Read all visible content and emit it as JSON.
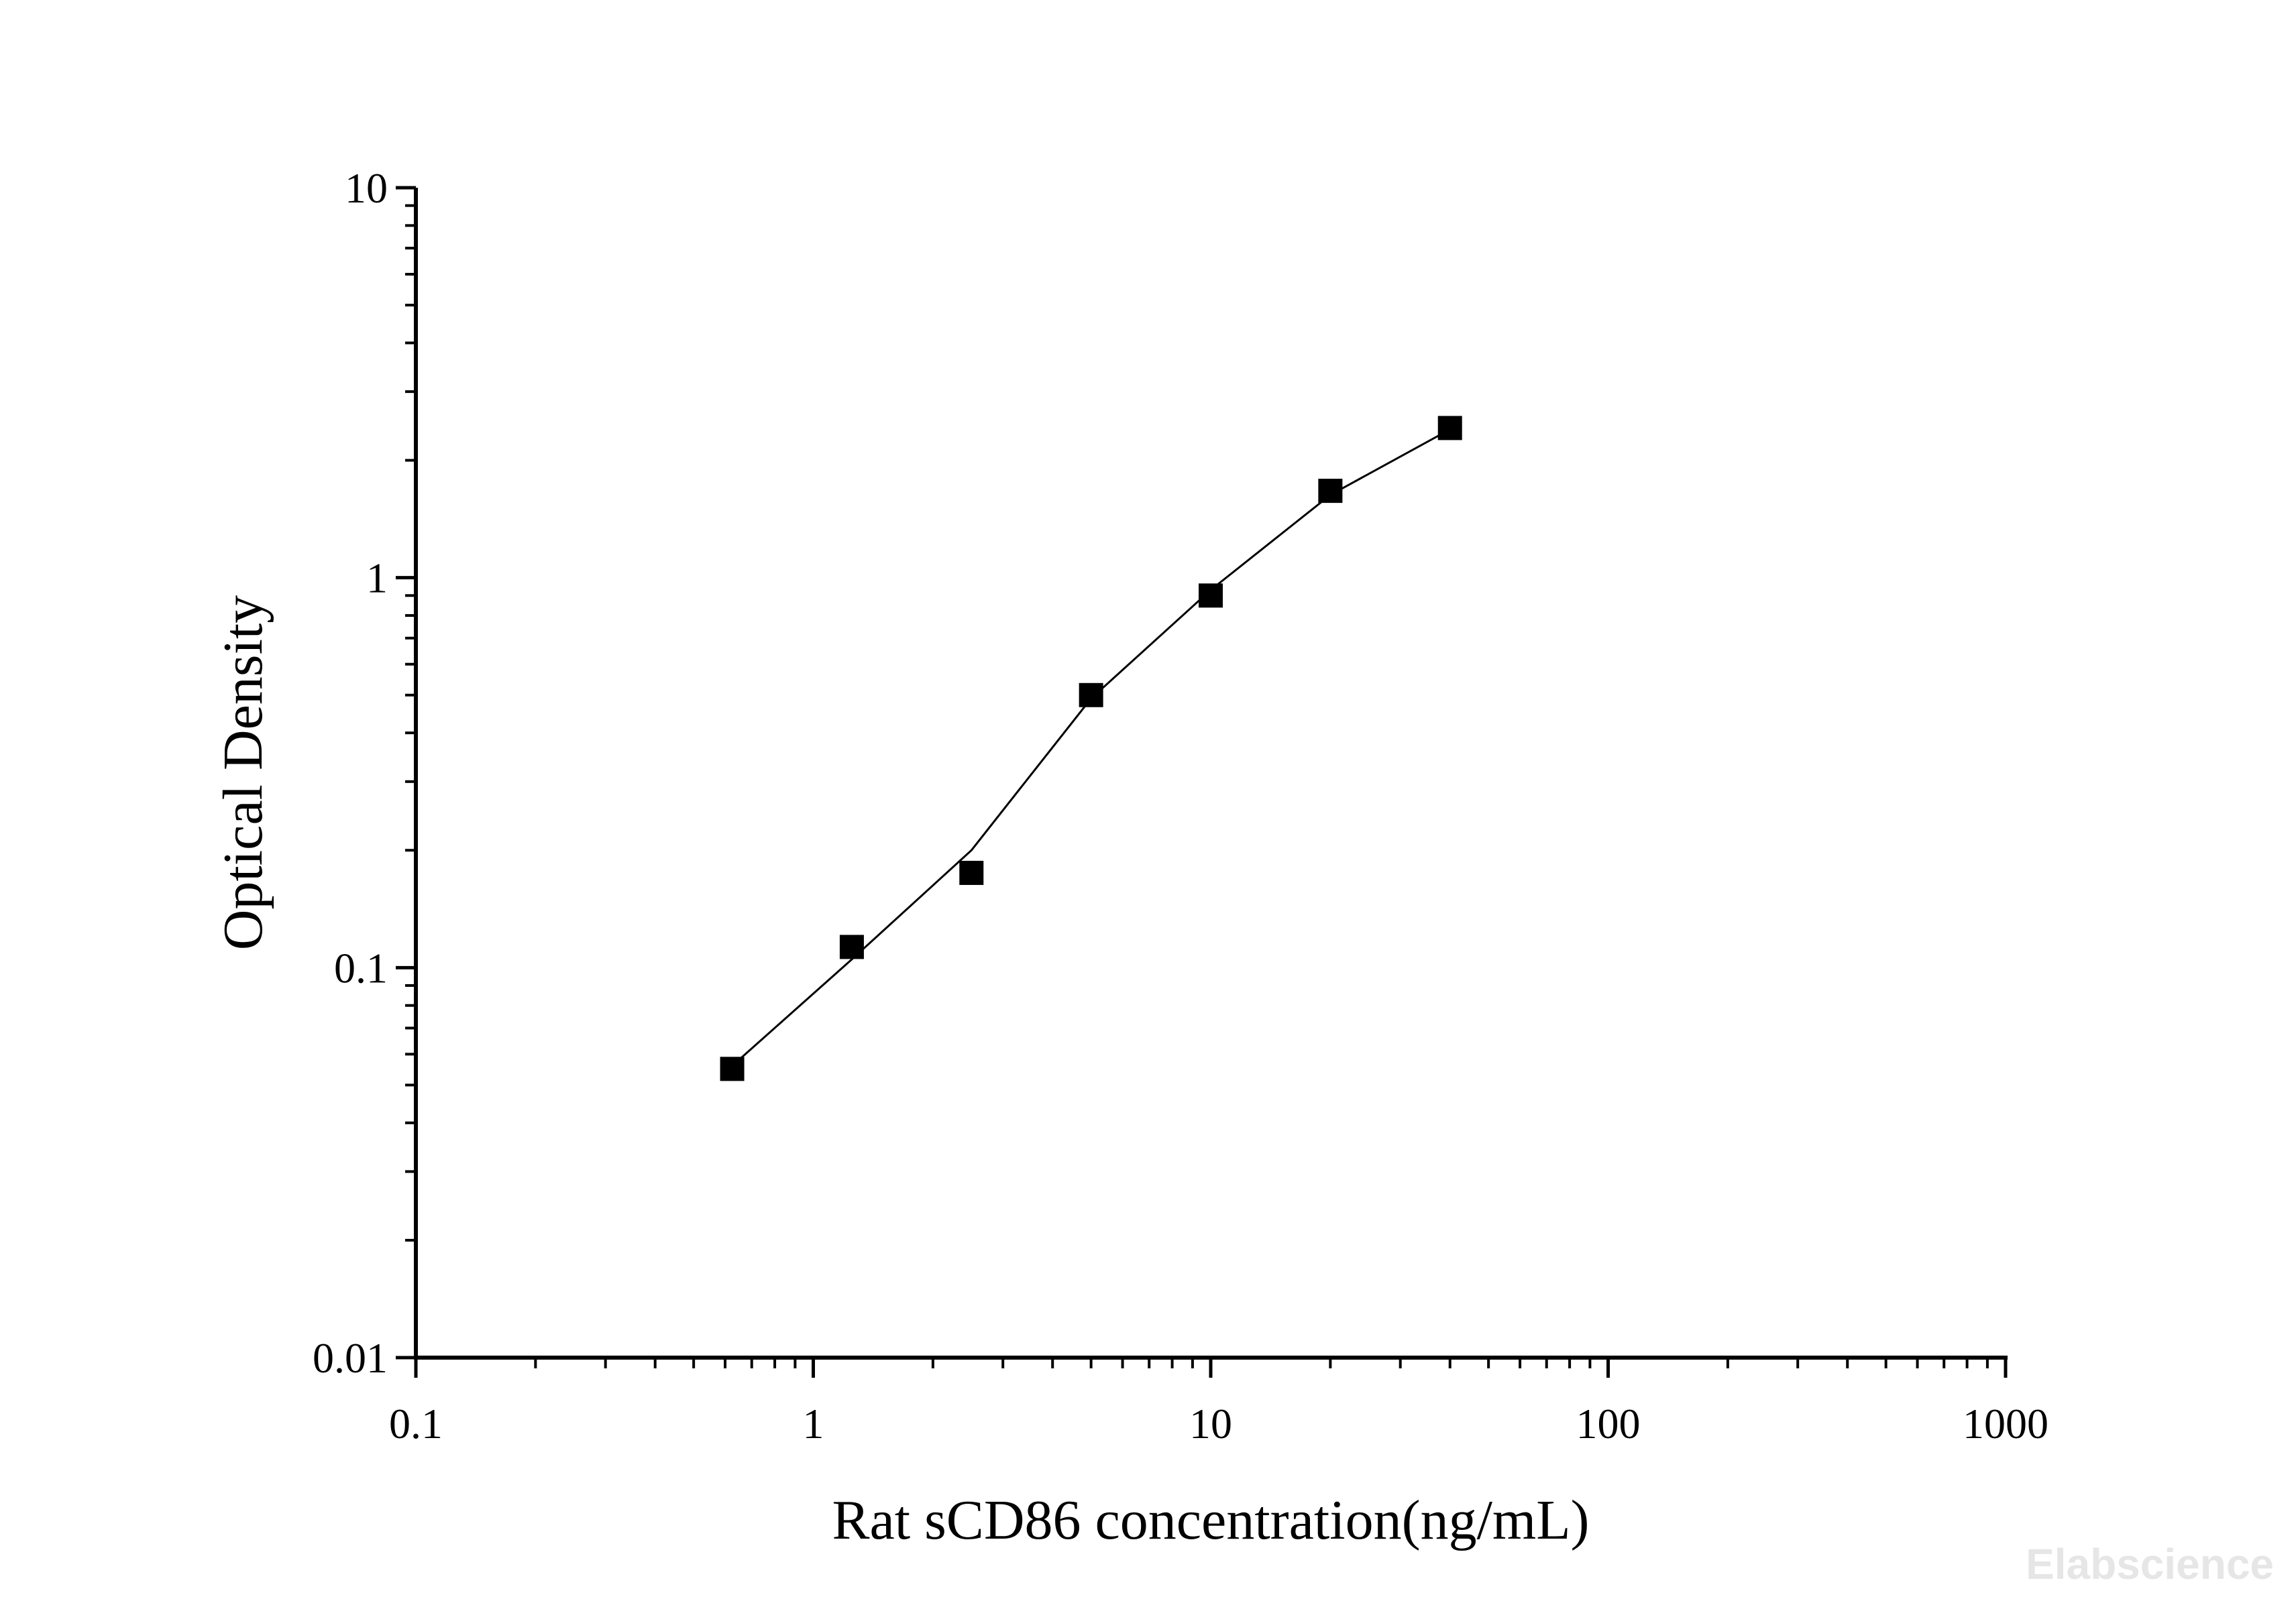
{
  "chart_data": {
    "type": "scatter",
    "xlabel": "Rat sCD86 concentration(ng/mL)",
    "ylabel": "Optical Density",
    "xscale": "log",
    "yscale": "log",
    "xlim": [
      0.1,
      1000
    ],
    "ylim": [
      0.01,
      10
    ],
    "x_tick_labels": [
      "0.1",
      "1",
      "10",
      "100",
      "1000"
    ],
    "y_tick_labels": [
      "0.01",
      "0.1",
      "1",
      "10"
    ],
    "grid": false,
    "series": [
      {
        "marker": "square",
        "color": "#000000",
        "points": [
          {
            "x": 0.625,
            "y": 0.055
          },
          {
            "x": 1.25,
            "y": 0.113
          },
          {
            "x": 2.5,
            "y": 0.175
          },
          {
            "x": 5,
            "y": 0.5
          },
          {
            "x": 10,
            "y": 0.9
          },
          {
            "x": 20,
            "y": 1.67
          },
          {
            "x": 40,
            "y": 2.42
          }
        ]
      }
    ],
    "fit_curve": {
      "color": "#000000",
      "points": [
        {
          "x": 0.625,
          "y": 0.056
        },
        {
          "x": 1.25,
          "y": 0.105
        },
        {
          "x": 2.5,
          "y": 0.2
        },
        {
          "x": 5,
          "y": 0.49
        },
        {
          "x": 10,
          "y": 0.93
        },
        {
          "x": 20,
          "y": 1.63
        },
        {
          "x": 40,
          "y": 2.4
        }
      ]
    }
  },
  "watermark": "Elabscience"
}
